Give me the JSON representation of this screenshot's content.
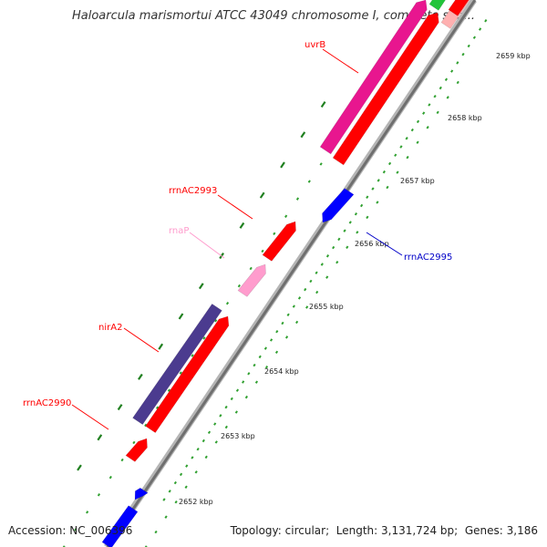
{
  "title": "Haloarcula marismortui ATCC 43049 chromosome I, complete seq...",
  "accession_label": "Accession:",
  "accession": "NC_006396",
  "topology_label": "Topology:",
  "topology": "circular",
  "length_label": "Length:",
  "length": "3,131,724 bp",
  "genes_label": "Genes:",
  "genes": "3,186",
  "kbp_labels": [
    "2652 kbp",
    "2653 kbp",
    "2654 kbp",
    "2655 kbp",
    "2656 kbp",
    "2657 kbp",
    "2658 kbp",
    "2659 kbp"
  ],
  "gene_labels": [
    {
      "name": "uvrB",
      "color": "#ff0000"
    },
    {
      "name": "rrnAC2993",
      "color": "#ff0000"
    },
    {
      "name": "rnaP",
      "color": "#ff9ccd"
    },
    {
      "name": "rrnAC2995",
      "color": "#0000c8"
    },
    {
      "name": "nirA2",
      "color": "#ff0000"
    },
    {
      "name": "rrnAC2990",
      "color": "#ff0000"
    }
  ],
  "colors": {
    "forward_cds": "#ff0000",
    "reverse_cds": "#0000ff",
    "uvrB_feature": "#e8168f",
    "nirA2_feature": "#4b3b8f",
    "rna": "#ff9ccd",
    "backbone": "#8a8a8a",
    "tick_major": "#208020",
    "tick_minor": "#30a030"
  }
}
